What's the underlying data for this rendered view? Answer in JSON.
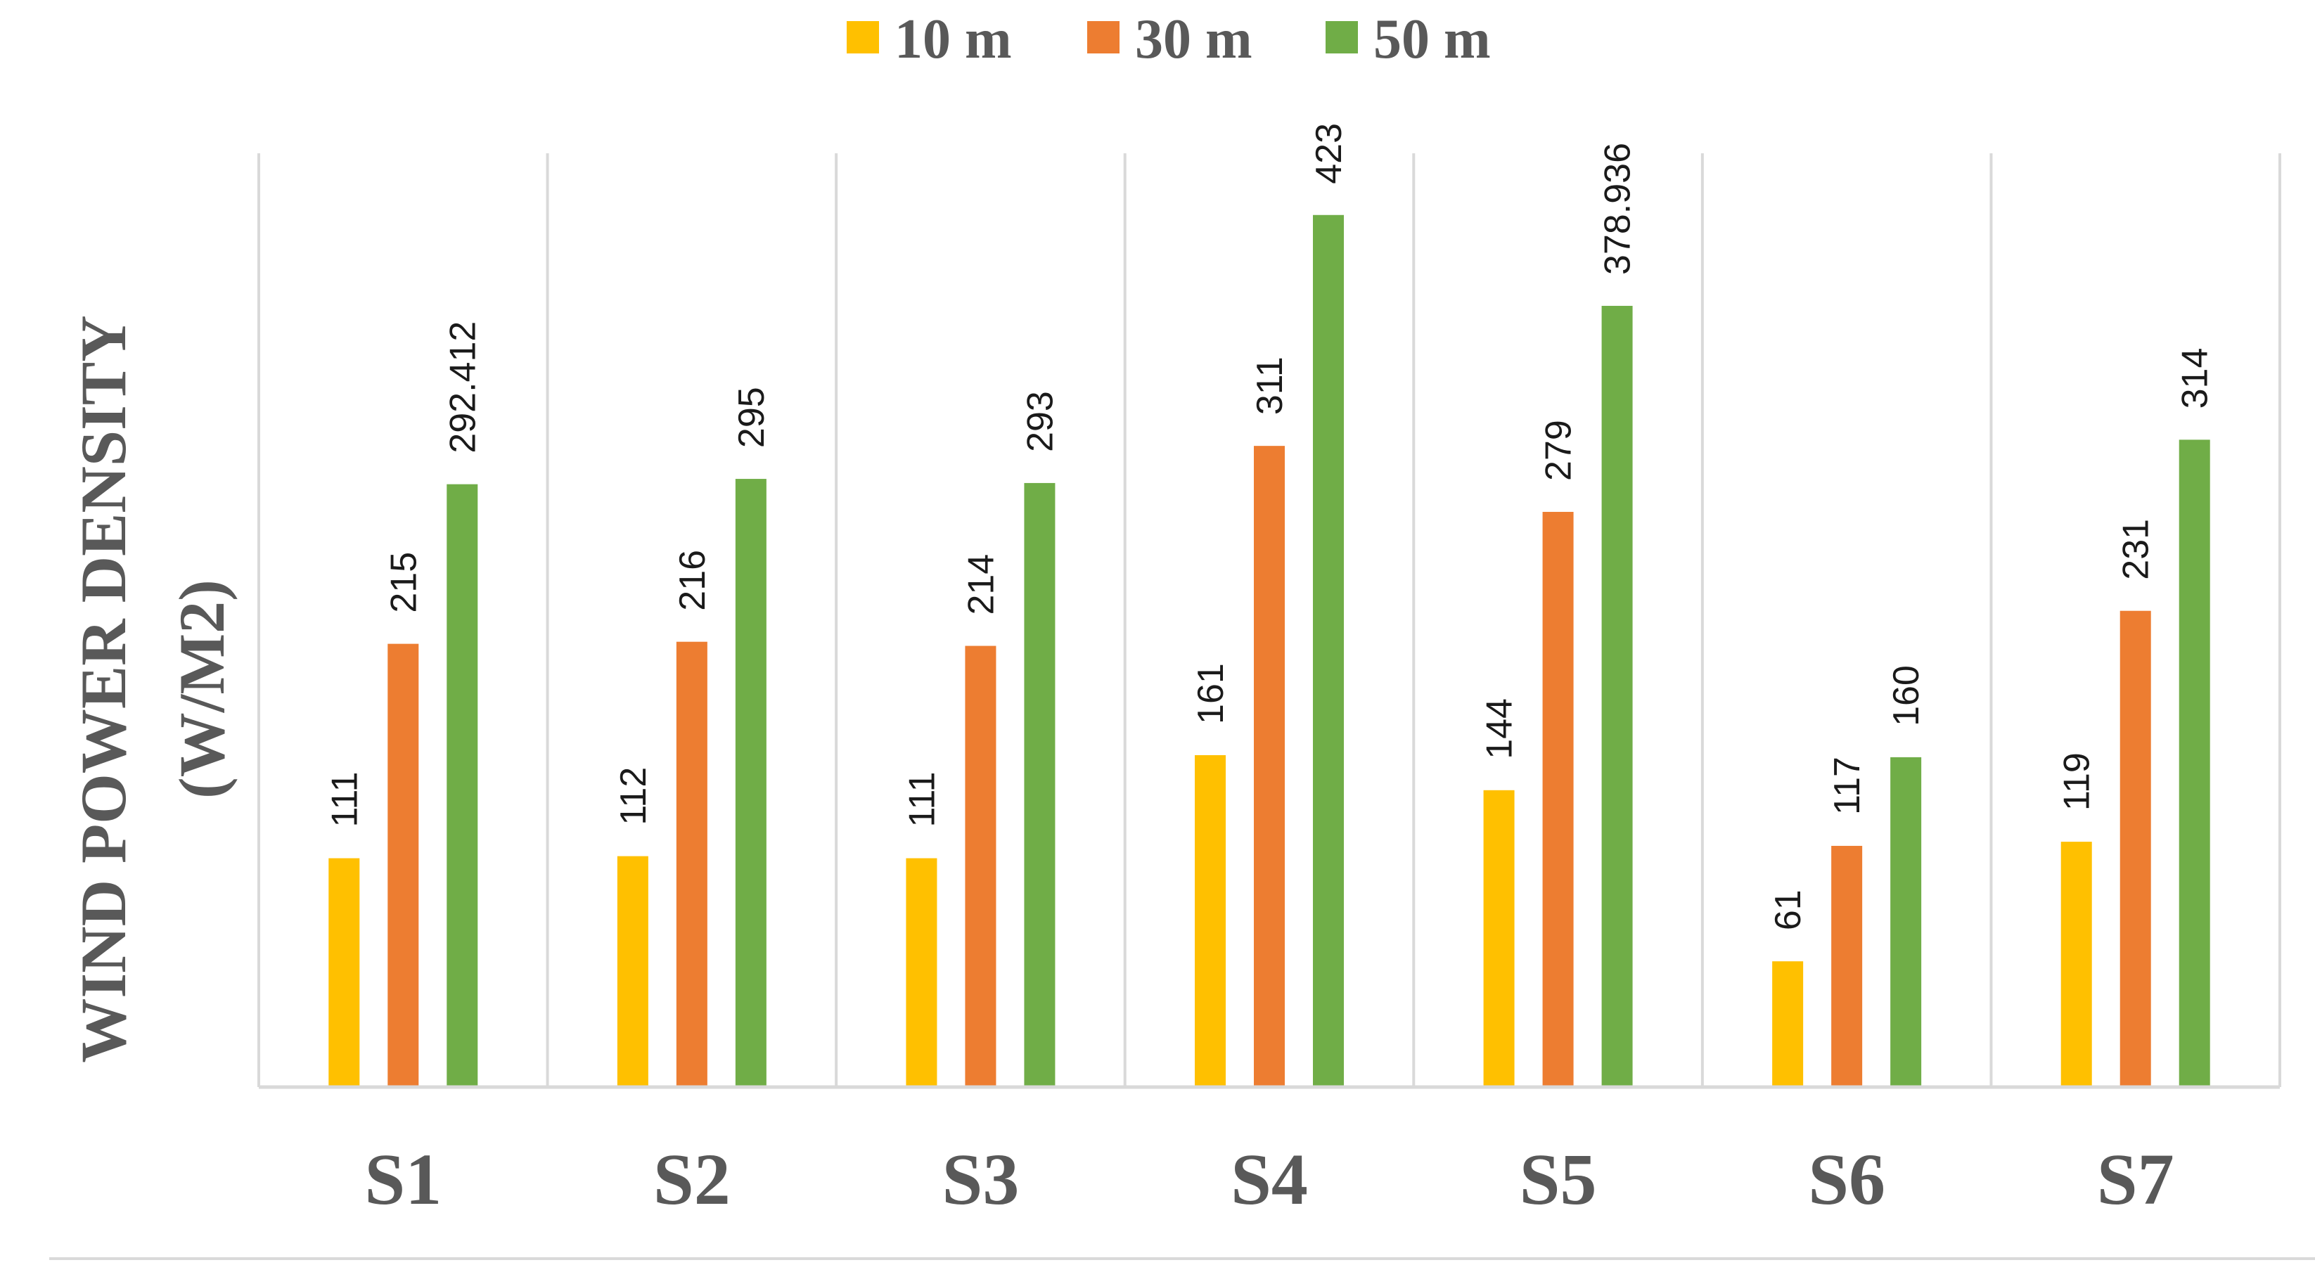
{
  "chart_data": {
    "type": "bar",
    "title": "",
    "xlabel": "",
    "ylabel": "WIND POWER DENSITY (W/M2)",
    "ylabel_lines": [
      "WIND POWER DENSITY",
      "(W/M2)"
    ],
    "categories": [
      "S1",
      "S2",
      "S3",
      "S4",
      "S5",
      "S6",
      "S7"
    ],
    "series": [
      {
        "name": "10 m",
        "color": "#FFC000",
        "values": [
          111,
          112,
          111,
          161,
          144,
          61,
          119
        ],
        "labels": [
          "111",
          "112",
          "111",
          "161",
          "144",
          "61",
          "119"
        ]
      },
      {
        "name": "30 m",
        "color": "#ED7D31",
        "values": [
          215,
          216,
          214,
          311,
          279,
          117,
          231
        ],
        "labels": [
          "215",
          "216",
          "214",
          "311",
          "279",
          "117",
          "231"
        ]
      },
      {
        "name": "50 m",
        "color": "#70AD47",
        "values": [
          292.412,
          295,
          293,
          423,
          378.936,
          160,
          314
        ],
        "labels": [
          "292.412",
          "295",
          "293",
          "423",
          "378.936",
          "160",
          "314"
        ]
      }
    ],
    "ylim": [
      0,
      450
    ],
    "grid": "vertical category separators",
    "legend_position": "top-center",
    "colors": {
      "axis": "#d9d9d9",
      "text": "#595959",
      "data_label": "#1a1a1a"
    }
  }
}
